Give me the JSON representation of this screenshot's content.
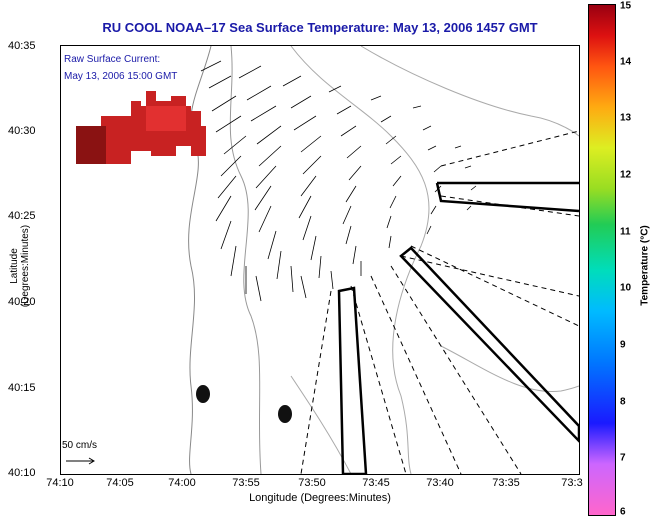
{
  "title": "RU COOL  NOAA–17  Sea Surface Temperature:  May 13, 2006 1457 GMT",
  "legend": {
    "line1": "Raw Surface Current:",
    "line2": "May 13, 2006 15:00 GMT"
  },
  "scale_vector": "50 cm/s",
  "x_axis": {
    "label": "Longitude (Degrees:Minutes)",
    "ticks": [
      "74:10",
      "74:05",
      "74:00",
      "73:55",
      "73:50",
      "73:45",
      "73:40",
      "73:35",
      "73:3"
    ]
  },
  "y_axis": {
    "label": "Latitude (Degrees:Minutes)",
    "ticks": [
      "40:35",
      "40:30",
      "40:25",
      "40:20",
      "40:15",
      "40:10"
    ]
  },
  "colorbar": {
    "label": "Temperature (°C)",
    "ticks": [
      "15",
      "14",
      "13",
      "12",
      "11",
      "10",
      "9",
      "8",
      "7",
      "6"
    ],
    "range": [
      6,
      15
    ]
  }
}
